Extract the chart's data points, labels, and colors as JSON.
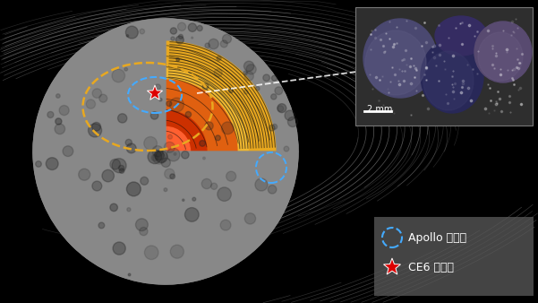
{
  "bg_color": "#000000",
  "legend_text1": "Apollo 撞击坑",
  "legend_text2": "CE6 着陆点",
  "legend_text_color": "#ffffff",
  "scale_bar_text": "2 mm",
  "moon_gray": "#888888",
  "mantle_color": "#E8A820",
  "outer_core_color": "#E06010",
  "inner_core_color": "#CC3000",
  "orange_dashes_color": "#E8A820",
  "blue_dashes_color": "#44AAFF",
  "field_line_color": "#AAAAAA",
  "star_color": "#DD0000",
  "rock_bg": "#333333"
}
